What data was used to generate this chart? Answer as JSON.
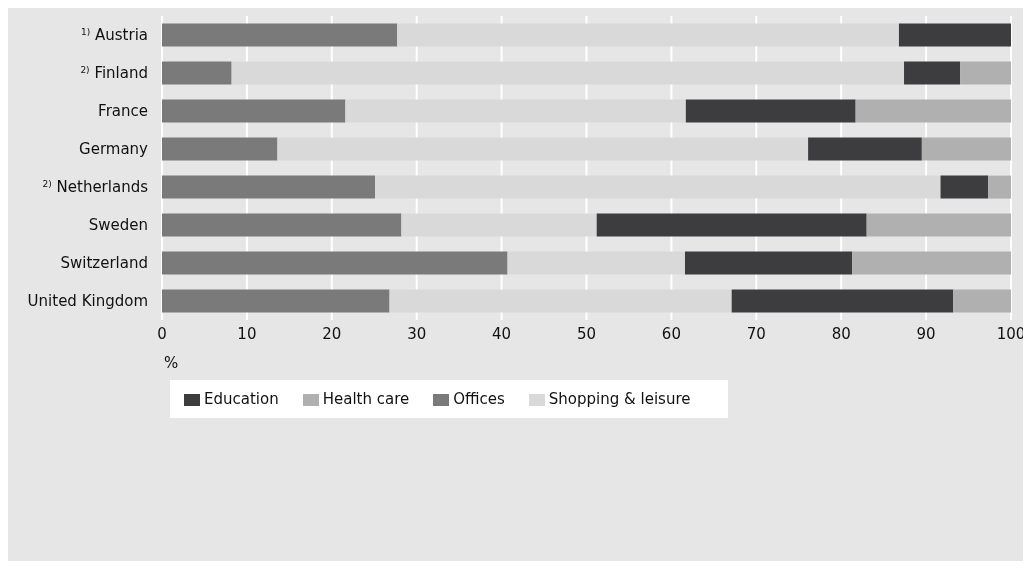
{
  "chart_data": {
    "type": "bar",
    "orientation": "horizontal",
    "stacked": true,
    "xlabel": "%",
    "categories": [
      "$^{1)}$ Austria",
      "$^{2)}$ Finland",
      "France",
      "Germany",
      "$^{2)}$ Netherlands",
      "Sweden",
      "Switzerland",
      "United Kingdom"
    ],
    "series": [
      {
        "name": "Offices",
        "color": "#7a7a7a",
        "values": [
          27.7,
          8.2,
          21.6,
          13.6,
          25.1,
          28.2,
          40.7,
          26.8
        ]
      },
      {
        "name": "Shopping & leisure",
        "color": "#d9d9d9",
        "values": [
          59.1,
          79.2,
          40.1,
          62.5,
          66.6,
          23,
          20.9,
          40.3
        ]
      },
      {
        "name": "Education",
        "color": "#3d3d3f",
        "values": [
          13.2,
          6.6,
          20,
          13.4,
          5.6,
          31.8,
          19.7,
          26.1
        ]
      },
      {
        "name": "Health care",
        "color": "#b0b0b0",
        "values": [
          0,
          6,
          18.3,
          10.5,
          2.7,
          17,
          18.7,
          6.8
        ]
      }
    ],
    "xlim": [
      0,
      100
    ],
    "xticks": [
      0,
      10,
      20,
      30,
      40,
      50,
      60,
      70,
      80,
      90,
      100
    ],
    "grid": "x",
    "legend": "bottom left"
  }
}
